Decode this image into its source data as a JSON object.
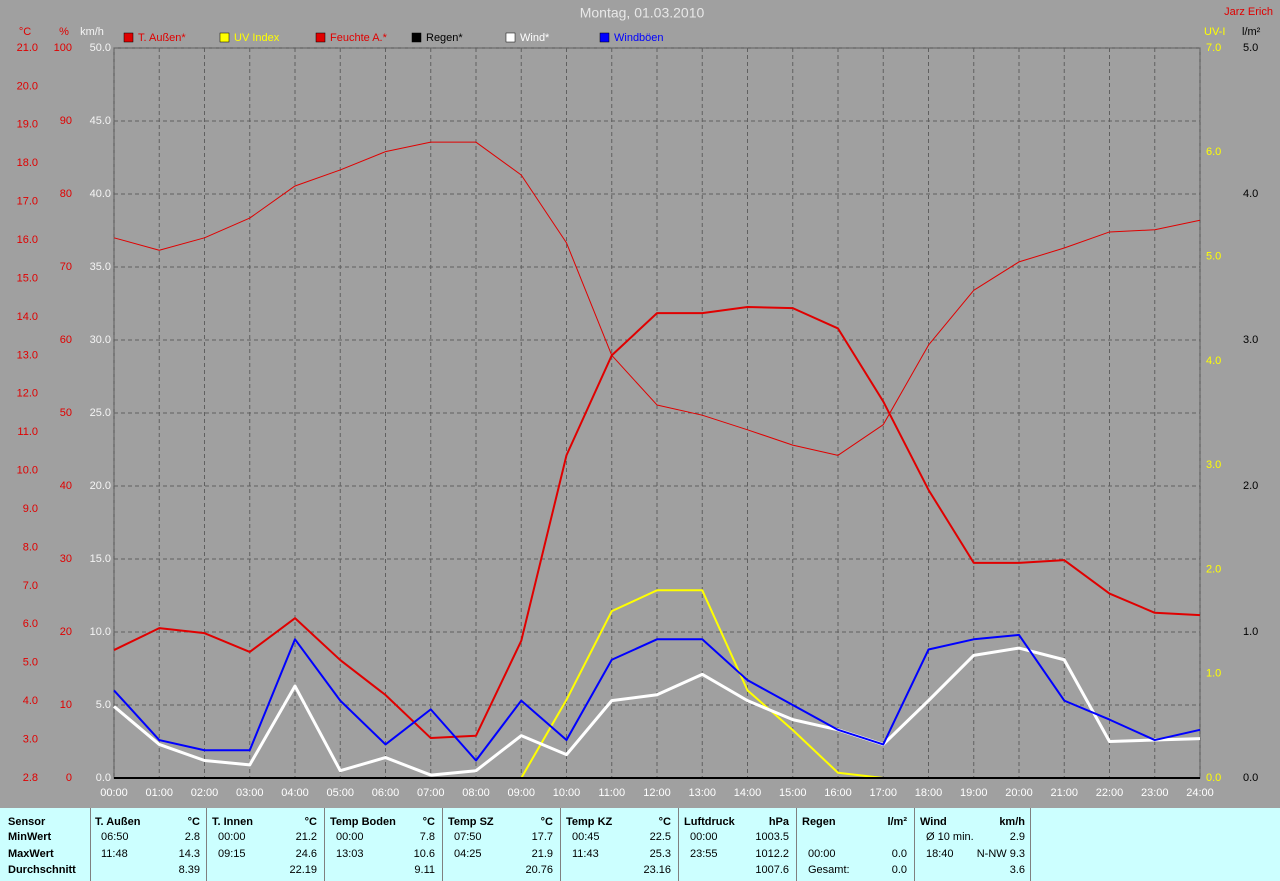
{
  "chart_data": {
    "type": "line",
    "title": "Montag, 01.03.2010",
    "author": "Jarz Erich",
    "categories": [
      "00:00",
      "01:00",
      "02:00",
      "03:00",
      "04:00",
      "05:00",
      "06:00",
      "07:00",
      "08:00",
      "09:00",
      "10:00",
      "11:00",
      "12:00",
      "13:00",
      "14:00",
      "15:00",
      "16:00",
      "17:00",
      "18:00",
      "19:00",
      "20:00",
      "21:00",
      "22:00",
      "23:00",
      "24:00"
    ],
    "grid": true,
    "grid_axis": "wind",
    "axes": {
      "temp": {
        "name": "°C",
        "color": "#e00000",
        "lim": [
          2,
          21
        ],
        "min_label": "2.8",
        "ticks": [
          {
            "value": 3,
            "label": "3.0"
          },
          {
            "value": 4,
            "label": "4.0"
          },
          {
            "value": 5,
            "label": "5.0"
          },
          {
            "value": 6,
            "label": "6.0"
          },
          {
            "value": 7,
            "label": "7.0"
          },
          {
            "value": 8,
            "label": "8.0"
          },
          {
            "value": 9,
            "label": "9.0"
          },
          {
            "value": 10,
            "label": "10.0"
          },
          {
            "value": 11,
            "label": "11.0"
          },
          {
            "value": 12,
            "label": "12.0"
          },
          {
            "value": 13,
            "label": "13.0"
          },
          {
            "value": 14,
            "label": "14.0"
          },
          {
            "value": 15,
            "label": "15.0"
          },
          {
            "value": 16,
            "label": "16.0"
          },
          {
            "value": 17,
            "label": "17.0"
          },
          {
            "value": 18,
            "label": "18.0"
          },
          {
            "value": 19,
            "label": "19.0"
          },
          {
            "value": 20,
            "label": "20.0"
          },
          {
            "value": 21,
            "label": "21.0"
          }
        ]
      },
      "hum": {
        "name": "%",
        "color": "#e00000",
        "lim": [
          0,
          100
        ],
        "ticks": [
          0,
          10,
          20,
          30,
          40,
          50,
          60,
          70,
          80,
          90,
          100
        ]
      },
      "wind": {
        "name": "km/h",
        "color": "#f4f4f4",
        "lim": [
          0,
          50
        ],
        "ticks": [
          {
            "value": 0,
            "label": "0.0"
          },
          {
            "value": 5,
            "label": "5.0"
          },
          {
            "value": 10,
            "label": "10.0"
          },
          {
            "value": 15,
            "label": "15.0"
          },
          {
            "value": 20,
            "label": "20.0"
          },
          {
            "value": 25,
            "label": "25.0"
          },
          {
            "value": 30,
            "label": "30.0"
          },
          {
            "value": 35,
            "label": "35.0"
          },
          {
            "value": 40,
            "label": "40.0"
          },
          {
            "value": 45,
            "label": "45.0"
          },
          {
            "value": 50,
            "label": "50.0"
          }
        ]
      },
      "uv": {
        "name": "UV-I",
        "color": "#ffff00",
        "lim": [
          0,
          7
        ],
        "ticks": [
          {
            "value": 0,
            "label": "0.0"
          },
          {
            "value": 1,
            "label": "1.0"
          },
          {
            "value": 2,
            "label": "2.0"
          },
          {
            "value": 3,
            "label": "3.0"
          },
          {
            "value": 4,
            "label": "4.0"
          },
          {
            "value": 5,
            "label": "5.0"
          },
          {
            "value": 6,
            "label": "6.0"
          },
          {
            "value": 7,
            "label": "7.0"
          }
        ]
      },
      "rain": {
        "name": "l/m²",
        "color": "#000000",
        "lim": [
          0,
          5
        ],
        "ticks": [
          {
            "value": 0,
            "label": "0.0"
          },
          {
            "value": 1,
            "label": "1.0"
          },
          {
            "value": 2,
            "label": "2.0"
          },
          {
            "value": 3,
            "label": "3.0"
          },
          {
            "value": 4,
            "label": "4.0"
          },
          {
            "value": 5,
            "label": "5.0"
          }
        ]
      }
    },
    "series": [
      {
        "name": "T. Außen*",
        "color": "#e00000",
        "axis": "temp",
        "width": 2,
        "values": [
          5.33,
          5.9,
          5.77,
          5.28,
          6.16,
          5.07,
          4.16,
          3.04,
          3.1,
          5.57,
          10.4,
          13.0,
          14.1,
          14.1,
          14.26,
          14.23,
          13.7,
          11.8,
          9.5,
          7.6,
          7.6,
          7.67,
          6.8,
          6.3,
          6.24
        ]
      },
      {
        "name": "UV Index",
        "color": "#ffff00",
        "axis": "uv",
        "width": 2,
        "values": [
          0,
          0,
          0,
          0,
          0,
          0,
          0,
          0,
          0,
          0,
          0.75,
          1.6,
          1.8,
          1.8,
          0.84,
          0.46,
          0.05,
          0,
          0,
          0,
          0,
          0,
          0,
          0,
          0
        ]
      },
      {
        "name": "Feuchte A.*",
        "color": "#e00000",
        "axis": "hum",
        "width": 1,
        "values": [
          74,
          72.3,
          74,
          76.7,
          81.1,
          83.3,
          85.8,
          87.1,
          87.1,
          82.6,
          73.3,
          57.9,
          51.1,
          49.7,
          47.7,
          45.6,
          44.2,
          48.4,
          59.3,
          66.8,
          70.7,
          72.6,
          74.8,
          75.1,
          76.4
        ]
      },
      {
        "name": "Regen*",
        "color": "#000000",
        "axis": "rain",
        "width": 2,
        "values": [
          0,
          0,
          0,
          0,
          0,
          0,
          0,
          0,
          0,
          0,
          0,
          0,
          0,
          0,
          0,
          0,
          0,
          0,
          0,
          0,
          0,
          0,
          0,
          0,
          0
        ]
      },
      {
        "name": "Wind*",
        "color": "#ffffff",
        "axis": "wind",
        "width": 3,
        "values": [
          4.9,
          2.3,
          1.2,
          0.9,
          6.3,
          0.5,
          1.4,
          0.2,
          0.5,
          2.9,
          1.6,
          5.3,
          5.7,
          7.1,
          5.3,
          4.0,
          3.3,
          2.3,
          5.3,
          8.4,
          8.9,
          8.1,
          2.5,
          2.6,
          2.7
        ]
      },
      {
        "name": "Windböen",
        "color": "#0000ff",
        "axis": "wind",
        "width": 2,
        "values": [
          6.0,
          2.6,
          1.9,
          1.9,
          9.5,
          5.3,
          2.3,
          4.7,
          1.2,
          5.3,
          2.6,
          8.1,
          9.5,
          9.5,
          6.7,
          5.0,
          3.3,
          2.3,
          8.8,
          9.5,
          9.8,
          5.3,
          4.0,
          2.6,
          3.3
        ]
      }
    ]
  },
  "stats": {
    "labels": [
      "Sensor",
      "MinWert",
      "MaxWert",
      "Durchschnitt"
    ],
    "blocks": [
      {
        "name": "T. Außen",
        "unit": "°C",
        "rows": [
          [
            "06:50",
            "2.8"
          ],
          [
            "11:48",
            "14.3"
          ],
          [
            "8.39"
          ]
        ]
      },
      {
        "name": "T. Innen",
        "unit": "°C",
        "rows": [
          [
            "00:00",
            "21.2"
          ],
          [
            "09:15",
            "24.6"
          ],
          [
            "22.19"
          ]
        ]
      },
      {
        "name": "Temp Boden",
        "unit": "°C",
        "rows": [
          [
            "00:00",
            "7.8"
          ],
          [
            "13:03",
            "10.6"
          ],
          [
            "9.11"
          ]
        ]
      },
      {
        "name": "Temp SZ",
        "unit": "°C",
        "rows": [
          [
            "07:50",
            "17.7"
          ],
          [
            "04:25",
            "21.9"
          ],
          [
            "20.76"
          ]
        ]
      },
      {
        "name": "Temp KZ",
        "unit": "°C",
        "rows": [
          [
            "00:45",
            "22.5"
          ],
          [
            "11:43",
            "25.3"
          ],
          [
            "23.16"
          ]
        ]
      },
      {
        "name": "Luftdruck",
        "unit": "hPa",
        "rows": [
          [
            "00:00",
            "1003.5"
          ],
          [
            "23:55",
            "1012.2"
          ],
          [
            "1007.6"
          ]
        ]
      },
      {
        "name": "Regen",
        "unit": "l/m²",
        "rows": [
          null,
          [
            "00:00",
            "0.0"
          ],
          [
            "Gesamt:",
            "0.0"
          ]
        ]
      },
      {
        "name": "Wind",
        "unit": "km/h",
        "rows": [
          [
            "Ø 10 min.",
            "2.9"
          ],
          [
            "18:40",
            "N-NW 9.3"
          ],
          [
            "3.6"
          ]
        ]
      }
    ]
  }
}
